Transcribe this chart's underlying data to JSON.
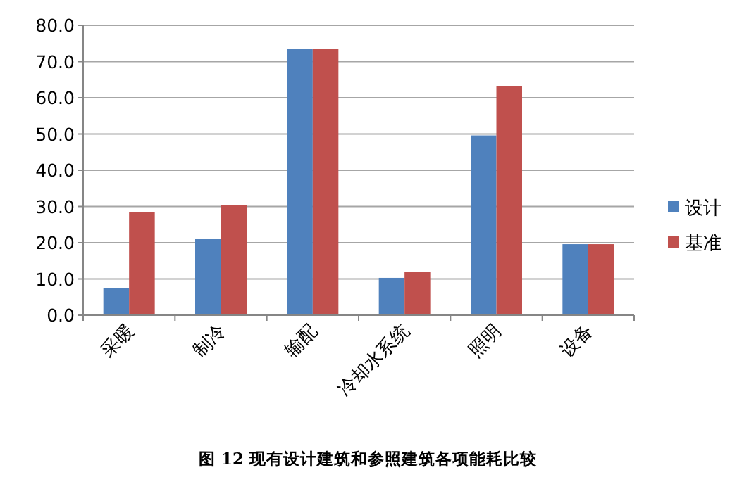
{
  "chart_data": {
    "type": "bar",
    "annotations": [
      "图 12 现有设计建筑和参照建筑各项能耗比较"
    ],
    "categories": [
      "采暖",
      "制冷",
      "输配",
      "冷却水系统",
      "照明",
      "设备"
    ],
    "series": [
      {
        "name": "设计",
        "color": "#4f81bd",
        "values": [
          7.5,
          21.0,
          73.4,
          10.3,
          49.6,
          19.6
        ]
      },
      {
        "name": "基准",
        "color": "#c0504d",
        "values": [
          28.4,
          30.3,
          73.4,
          12.0,
          63.3,
          19.6
        ]
      }
    ],
    "ylim": [
      0,
      80
    ],
    "yticks": [
      {
        "value": 0,
        "label": "0.0"
      },
      {
        "value": 10,
        "label": "10.0"
      },
      {
        "value": 20,
        "label": "20.0"
      },
      {
        "value": 30,
        "label": "30.0"
      },
      {
        "value": 40,
        "label": "40.0"
      },
      {
        "value": 50,
        "label": "50.0"
      },
      {
        "value": 60,
        "label": "60.0"
      },
      {
        "value": 70,
        "label": "70.0"
      },
      {
        "value": 80,
        "label": "80.0"
      }
    ],
    "grid": "y",
    "legend": "right"
  }
}
